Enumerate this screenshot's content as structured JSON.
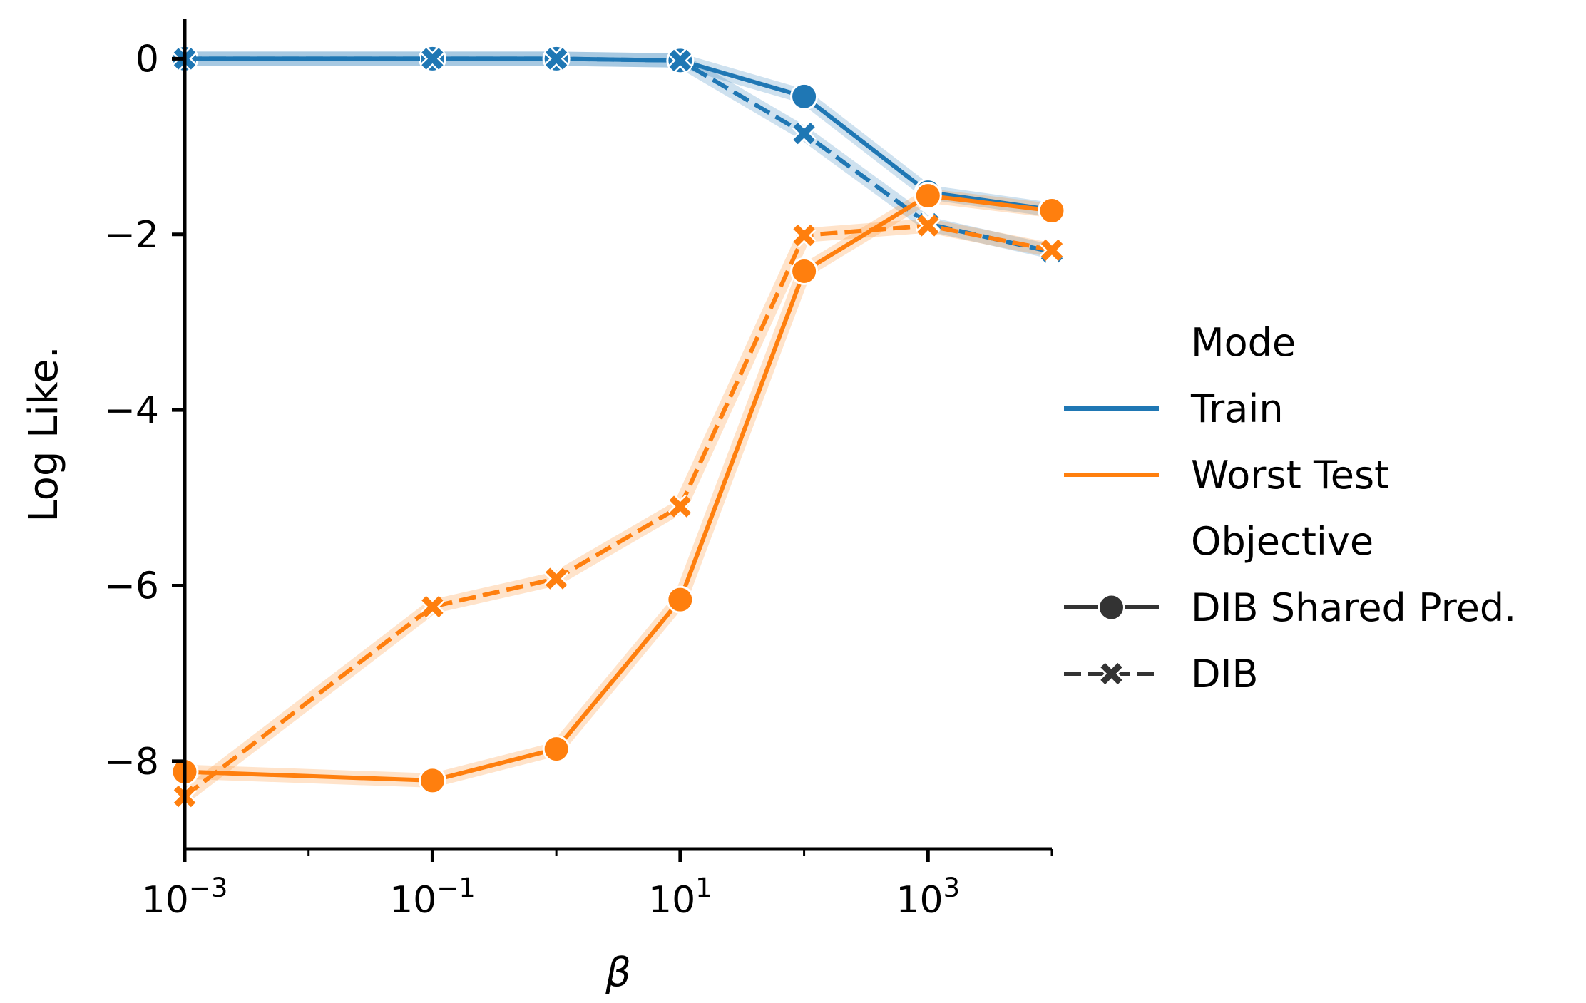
{
  "chart_data": {
    "type": "line",
    "title": "",
    "xlabel": "β",
    "ylabel": "Log Like.",
    "xscale": "log",
    "xlim": [
      0.001,
      10000
    ],
    "ylim": [
      -9,
      0.45
    ],
    "x_ticks": [
      {
        "value": 0.001,
        "base": "10",
        "exp": "−3"
      },
      {
        "value": 0.1,
        "base": "10",
        "exp": "−1"
      },
      {
        "value": 10,
        "base": "10",
        "exp": "1"
      },
      {
        "value": 1000,
        "base": "10",
        "exp": "3"
      }
    ],
    "y_ticks": [
      {
        "value": 0,
        "label": "0"
      },
      {
        "value": -2,
        "label": "−2"
      },
      {
        "value": -4,
        "label": "−4"
      },
      {
        "value": -6,
        "label": "−6"
      },
      {
        "value": -8,
        "label": "−8"
      }
    ],
    "x": [
      0.001,
      0.1,
      1,
      10,
      100,
      1000,
      10000
    ],
    "series": [
      {
        "name": "Train – DIB Shared Pred.",
        "mode": "Train",
        "objective": "DIB Shared Pred.",
        "color": "#1f77b4",
        "marker": "circle",
        "dashed": false,
        "values": [
          0,
          0,
          0,
          -0.02,
          -0.43,
          -1.52,
          -1.72
        ]
      },
      {
        "name": "Train – DIB",
        "mode": "Train",
        "objective": "DIB",
        "color": "#1f77b4",
        "marker": "x",
        "dashed": true,
        "values": [
          0,
          0,
          0,
          -0.02,
          -0.85,
          -1.88,
          -2.2
        ]
      },
      {
        "name": "Worst Test – DIB Shared Pred.",
        "mode": "Worst Test",
        "objective": "DIB Shared Pred.",
        "color": "#ff7f0e",
        "marker": "circle",
        "dashed": false,
        "values": [
          -8.12,
          -8.22,
          -7.86,
          -6.16,
          -2.42,
          -1.56,
          -1.73
        ]
      },
      {
        "name": "Worst Test – DIB",
        "mode": "Worst Test",
        "objective": "DIB",
        "color": "#ff7f0e",
        "marker": "x",
        "dashed": true,
        "values": [
          -8.4,
          -6.24,
          -5.92,
          -5.1,
          -2.01,
          -1.9,
          -2.18
        ]
      }
    ],
    "legend": {
      "placement": "right",
      "mode_title": "Mode",
      "mode_items": [
        {
          "label": "Train",
          "color": "#1f77b4"
        },
        {
          "label": "Worst Test",
          "color": "#ff7f0e"
        }
      ],
      "objective_title": "Objective",
      "objective_items": [
        {
          "label": "DIB Shared Pred.",
          "marker": "circle",
          "dashed": false
        },
        {
          "label": "DIB",
          "marker": "x",
          "dashed": true
        }
      ]
    }
  }
}
